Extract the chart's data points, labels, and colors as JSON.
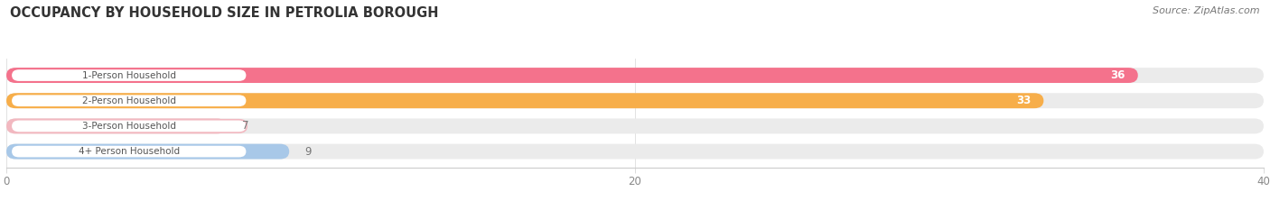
{
  "title": "OCCUPANCY BY HOUSEHOLD SIZE IN PETROLIA BOROUGH",
  "source": "Source: ZipAtlas.com",
  "categories": [
    "1-Person Household",
    "2-Person Household",
    "3-Person Household",
    "4+ Person Household"
  ],
  "values": [
    36,
    33,
    7,
    9
  ],
  "bar_colors": [
    "#F4728C",
    "#F7AE4A",
    "#F2B8C0",
    "#A8C8E8"
  ],
  "track_color": "#EBEBEB",
  "label_bg_color": "#FFFFFF",
  "label_border_colors": [
    "#F4728C",
    "#F7AE4A",
    "#F2B8C0",
    "#A8C8E8"
  ],
  "label_text_color": "#555555",
  "value_text_color_inside": "#FFFFFF",
  "value_text_color_outside": "#777777",
  "xlim": [
    0,
    40
  ],
  "xticks": [
    0,
    20,
    40
  ],
  "figsize": [
    14.06,
    2.33
  ],
  "dpi": 100,
  "background_color": "#FFFFFF",
  "title_color": "#333333",
  "source_color": "#777777"
}
